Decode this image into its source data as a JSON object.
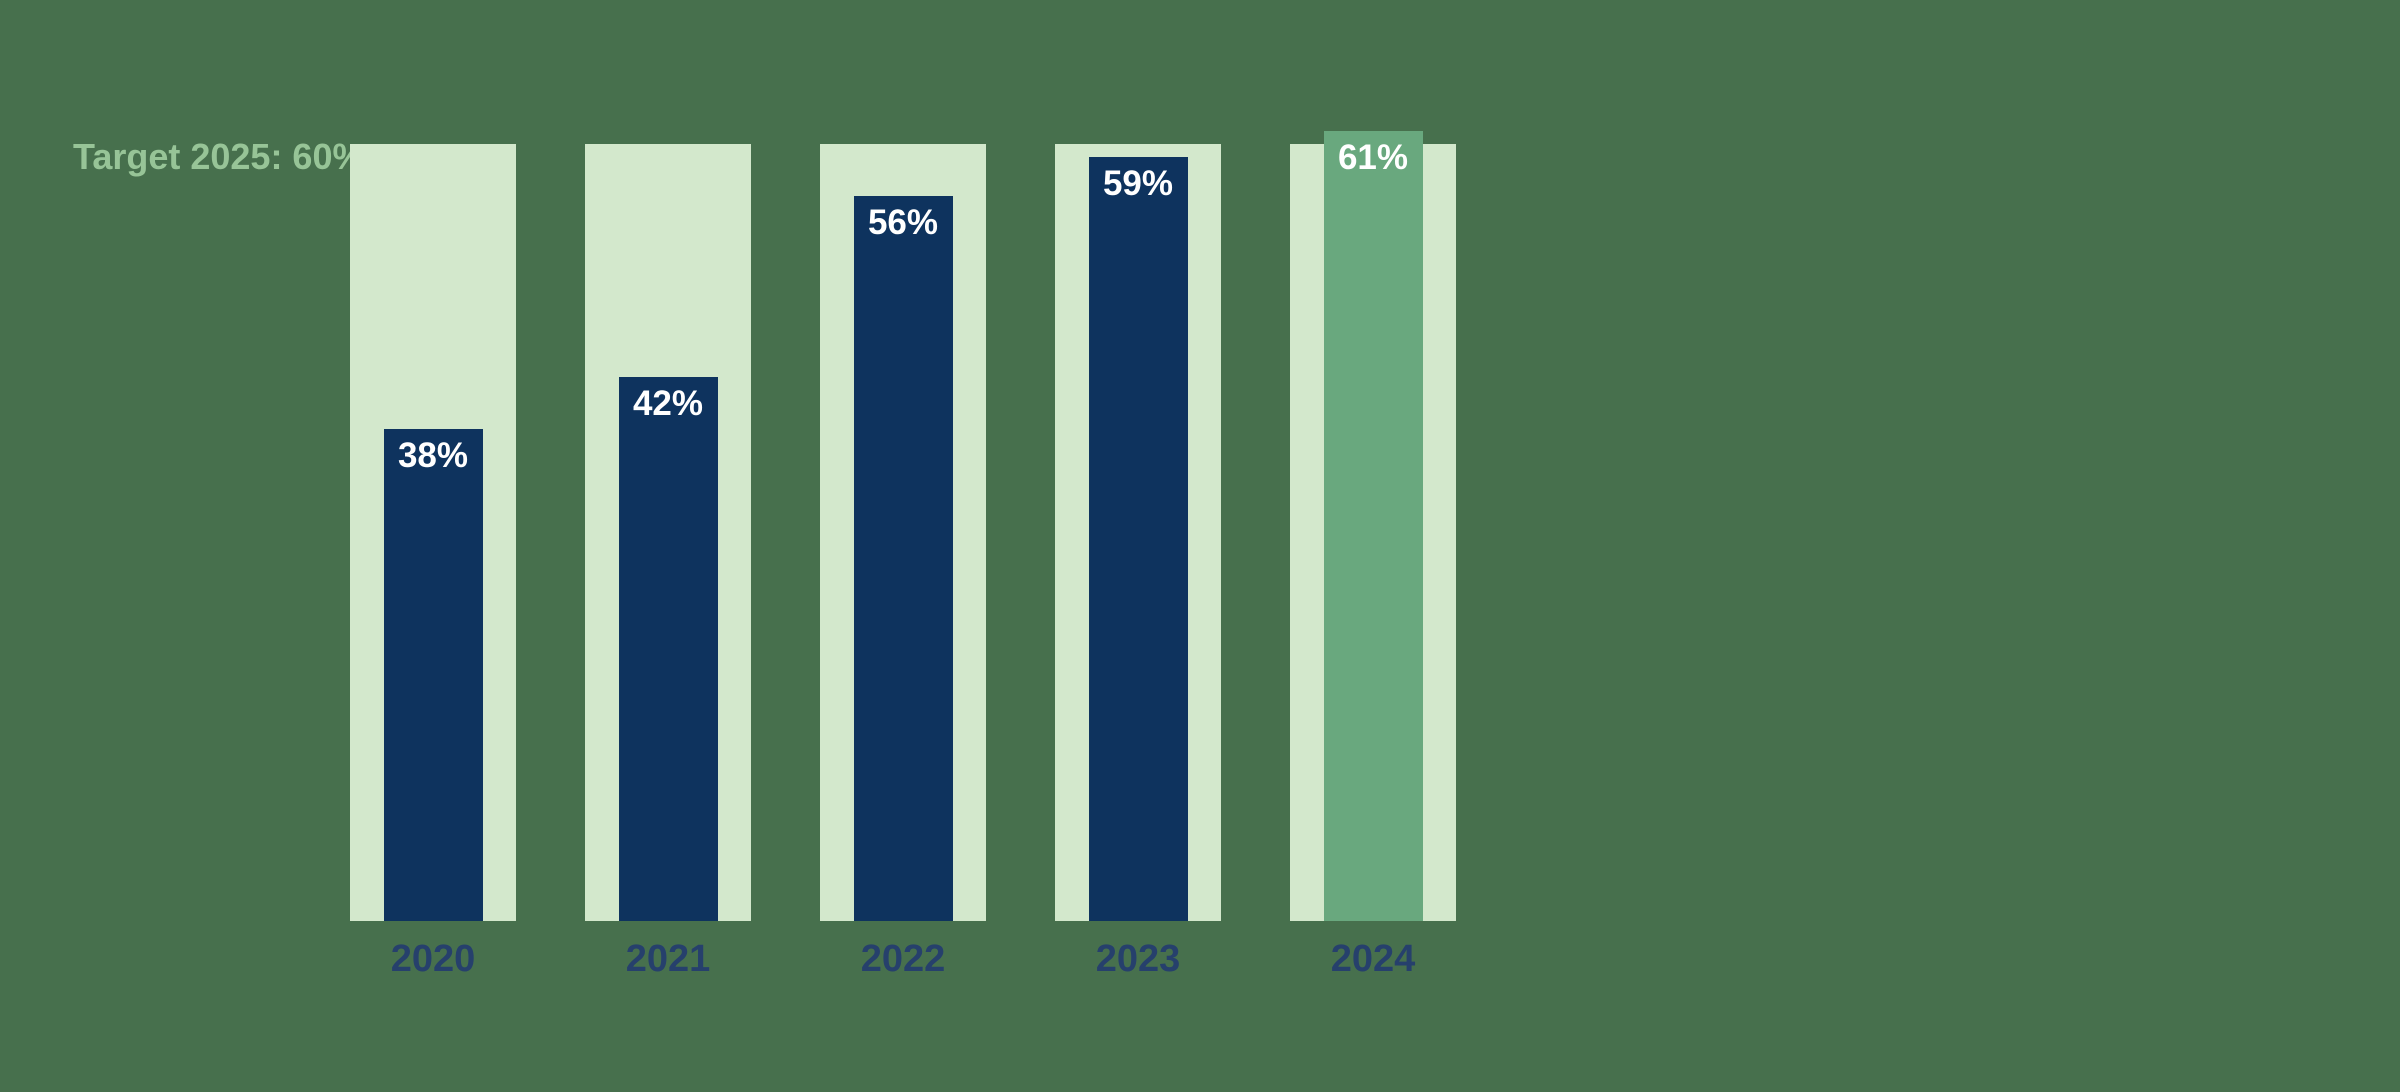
{
  "chart_data": {
    "type": "bar",
    "title": "",
    "target_label": "Target 2025: 60%",
    "target_value": 60,
    "track_max": 60,
    "categories": [
      "2020",
      "2021",
      "2022",
      "2023",
      "2024"
    ],
    "values": [
      38,
      42,
      56,
      59,
      61
    ],
    "value_labels": [
      "38%",
      "42%",
      "56%",
      "59%",
      "61%"
    ],
    "bar_styles": [
      "actual",
      "actual",
      "actual",
      "actual",
      "highlight"
    ],
    "xlabel": "",
    "ylabel": "",
    "axes": "none",
    "grid": "off",
    "legend": "none"
  },
  "colors": {
    "background": "#47704D",
    "track": "#D3E8CC",
    "bar_actual": "#0E335E",
    "bar_highlight": "#69A87E",
    "value_label_text": "#FFFFFF",
    "category_label_text": "#26406C",
    "target_label_text": "#97C497"
  }
}
